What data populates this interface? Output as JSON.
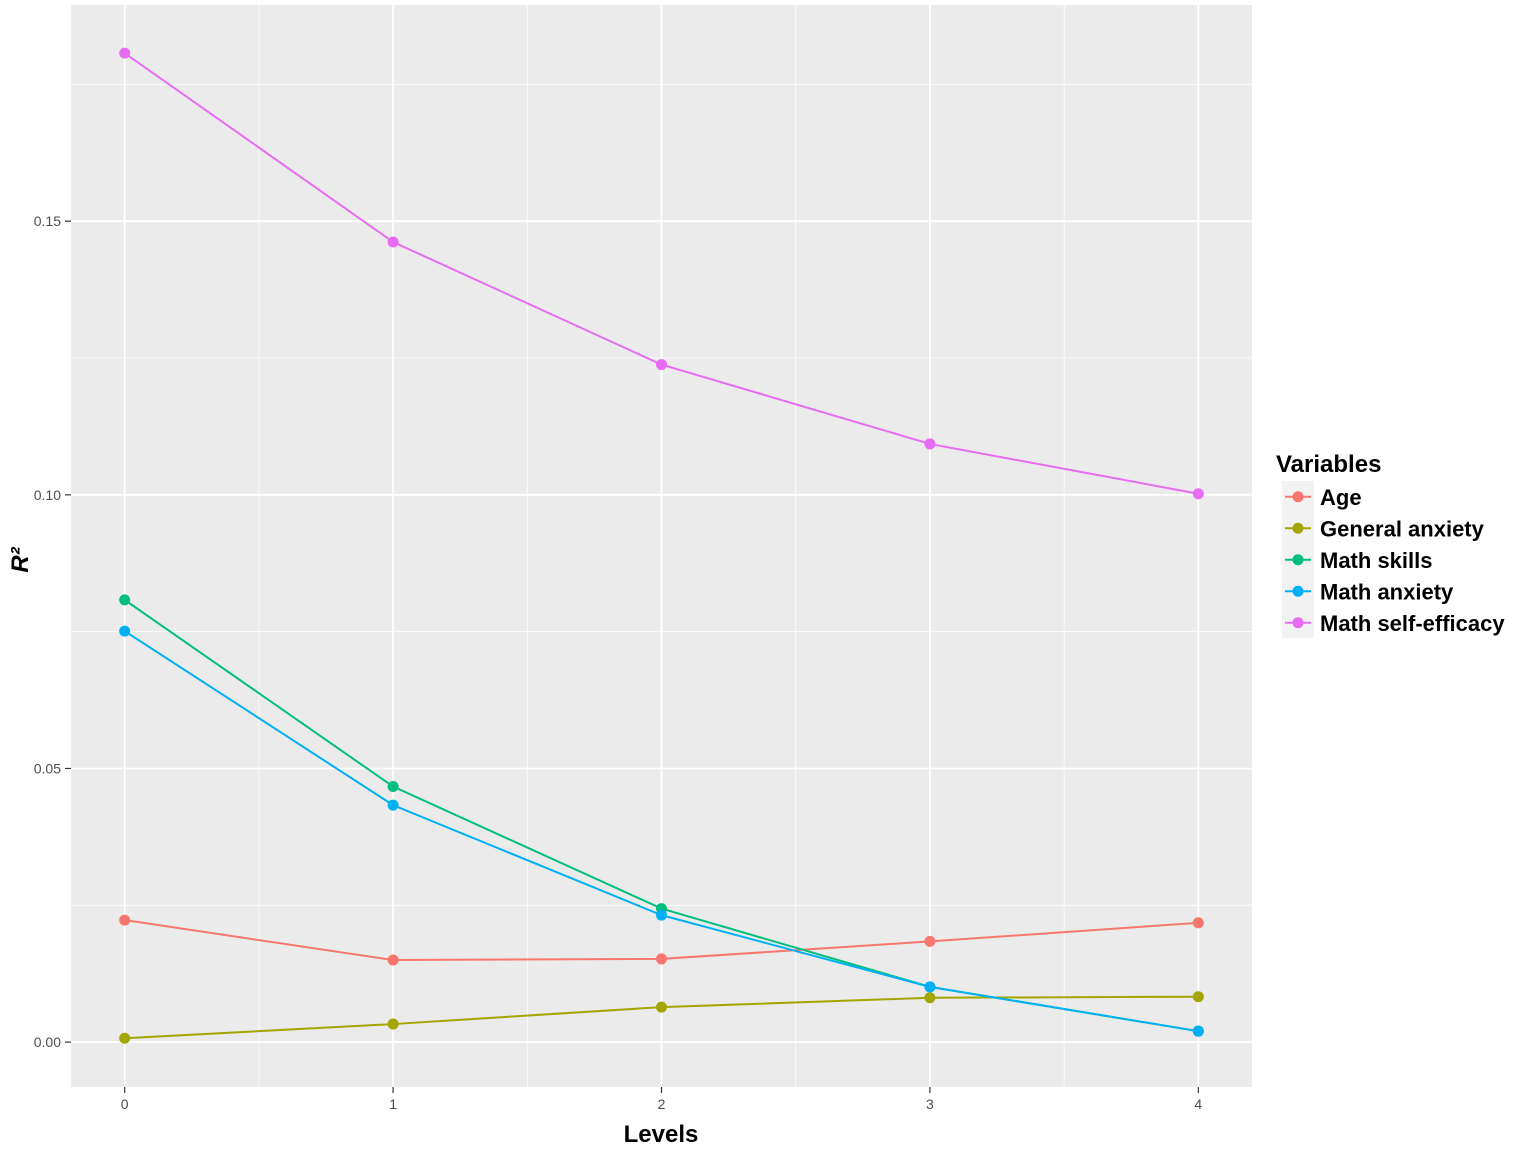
{
  "chart_data": {
    "type": "line",
    "xlabel": "Levels",
    "ylabel": "R²",
    "x": [
      0,
      1,
      2,
      3,
      4
    ],
    "xlim": [
      -0.2,
      4.2
    ],
    "ylim": [
      -0.0082,
      0.1895
    ],
    "x_ticks": [
      0,
      1,
      2,
      3,
      4
    ],
    "x_tick_labels": [
      "0",
      "1",
      "2",
      "3",
      "4"
    ],
    "y_ticks": [
      0.0,
      0.05,
      0.1,
      0.15
    ],
    "y_tick_labels": [
      "0.00",
      "0.05",
      "0.10",
      "0.15"
    ],
    "grid": true,
    "legend": {
      "title": "Variables",
      "placement": "right"
    },
    "series": [
      {
        "name": "Age",
        "color": "#F8766D",
        "values": [
          0.0223,
          0.015,
          0.0152,
          0.0184,
          0.0218
        ]
      },
      {
        "name": "General anxiety",
        "color": "#A3A500",
        "values": [
          0.0007,
          0.0033,
          0.0064,
          0.0081,
          0.0083
        ]
      },
      {
        "name": "Math skills",
        "color": "#00BF7D",
        "values": [
          0.0808,
          0.0467,
          0.0244,
          0.0101,
          0.002
        ]
      },
      {
        "name": "Math anxiety",
        "color": "#00B0F6",
        "values": [
          0.0751,
          0.0433,
          0.0232,
          0.0101,
          0.002
        ]
      },
      {
        "name": "Math self-efficacy",
        "color": "#E76BF3",
        "values": [
          0.1807,
          0.1462,
          0.1238,
          0.1093,
          0.1002
        ]
      }
    ]
  }
}
